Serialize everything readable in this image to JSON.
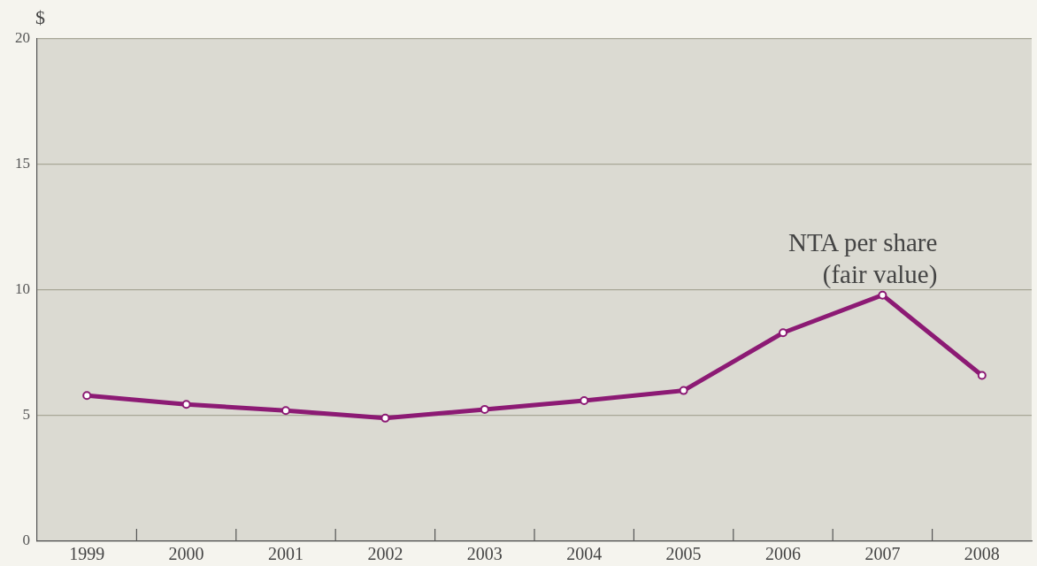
{
  "chart_data": {
    "type": "line",
    "ylabel": "$",
    "categories": [
      "1999",
      "2000",
      "2001",
      "2002",
      "2003",
      "2004",
      "2005",
      "2006",
      "2007",
      "2008"
    ],
    "series": [
      {
        "name": "NTA per share (fair value)",
        "color": "#8c1a74",
        "values": [
          5.8,
          5.45,
          5.2,
          4.9,
          5.25,
          5.6,
          6.0,
          8.3,
          9.8,
          6.6
        ]
      }
    ],
    "ylim": [
      0,
      20
    ],
    "yticks": [
      0,
      5,
      10,
      15,
      20
    ],
    "grid": "y",
    "marker": "circle",
    "line_style": "solid",
    "legend": false
  }
}
